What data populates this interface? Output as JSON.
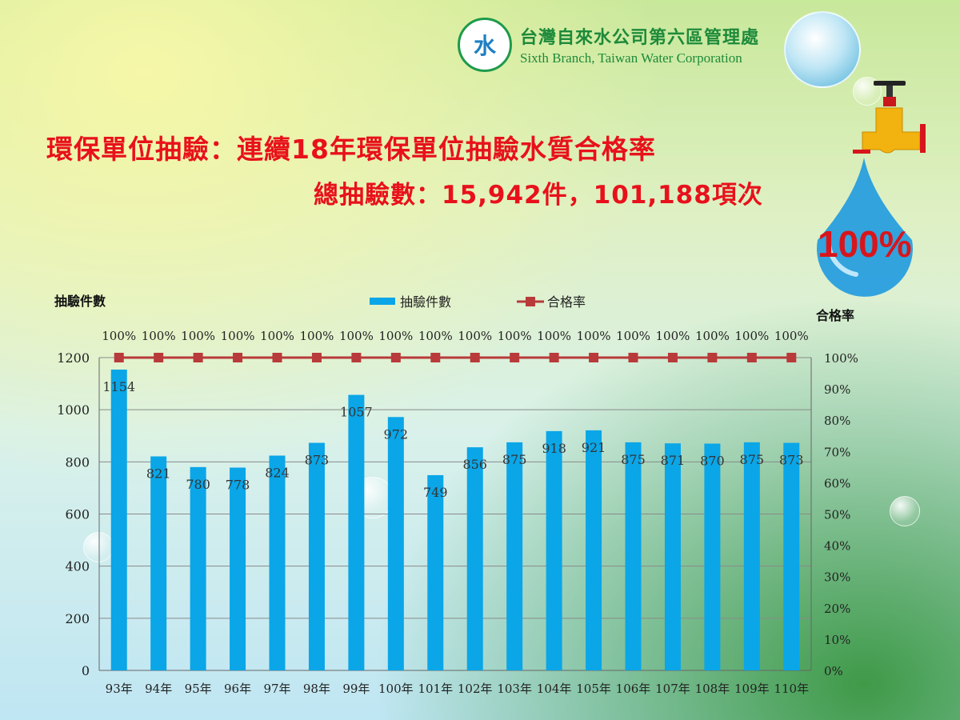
{
  "header": {
    "org_name_cn": "台灣自來水公司第六區管理處",
    "org_name_en": "Sixth Branch, Taiwan Water Corporation",
    "logo_icon": "water-company-logo-icon"
  },
  "slide": {
    "title": "環保單位抽驗：連續18年環保單位抽驗水質合格率",
    "subtitle": "總抽驗數：15,942件，101,188項次",
    "badge": "100%"
  },
  "colors": {
    "bar": "#0aa6e8",
    "line": "#b83a3a",
    "title": "#e8111b",
    "brand": "#1d8a3a"
  },
  "chart_data": {
    "type": "bar",
    "categories": [
      "93年",
      "94年",
      "95年",
      "96年",
      "97年",
      "98年",
      "99年",
      "100年",
      "101年",
      "102年",
      "103年",
      "104年",
      "105年",
      "106年",
      "107年",
      "108年",
      "109年",
      "110年"
    ],
    "ylabel": "抽驗件數",
    "y2label": "合格率",
    "ylim": [
      0,
      1200
    ],
    "y2lim": [
      0,
      100
    ],
    "yticks": [
      "0",
      "200",
      "400",
      "600",
      "800",
      "1000",
      "1200"
    ],
    "y2ticks": [
      "0%",
      "10%",
      "20%",
      "30%",
      "40%",
      "50%",
      "60%",
      "70%",
      "80%",
      "90%",
      "100%"
    ],
    "legend_position": "top",
    "grid": true,
    "series": [
      {
        "name": "抽驗件數",
        "type": "bar",
        "values": [
          1154,
          821,
          780,
          778,
          824,
          873,
          1057,
          972,
          749,
          856,
          875,
          918,
          921,
          875,
          871,
          870,
          875,
          873
        ],
        "labels": [
          "1154",
          "821",
          "780",
          "778",
          "824",
          "873",
          "1057",
          "972",
          "749",
          "856",
          "875",
          "918",
          "921",
          "875",
          "871",
          "870",
          "875",
          "873"
        ]
      },
      {
        "name": "合格率",
        "type": "line",
        "axis": "right",
        "values": [
          100,
          100,
          100,
          100,
          100,
          100,
          100,
          100,
          100,
          100,
          100,
          100,
          100,
          100,
          100,
          100,
          100,
          100
        ],
        "labels": [
          "100%",
          "100%",
          "100%",
          "100%",
          "100%",
          "100%",
          "100%",
          "100%",
          "100%",
          "100%",
          "100%",
          "100%",
          "100%",
          "100%",
          "100%",
          "100%",
          "100%",
          "100%"
        ]
      }
    ]
  }
}
